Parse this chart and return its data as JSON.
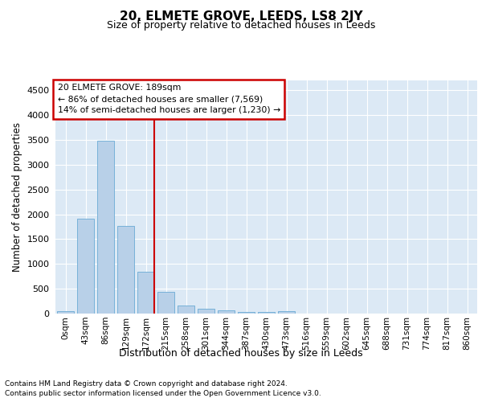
{
  "title": "20, ELMETE GROVE, LEEDS, LS8 2JY",
  "subtitle": "Size of property relative to detached houses in Leeds",
  "xlabel": "Distribution of detached houses by size in Leeds",
  "ylabel": "Number of detached properties",
  "bin_labels": [
    "0sqm",
    "43sqm",
    "86sqm",
    "129sqm",
    "172sqm",
    "215sqm",
    "258sqm",
    "301sqm",
    "344sqm",
    "387sqm",
    "430sqm",
    "473sqm",
    "516sqm",
    "559sqm",
    "602sqm",
    "645sqm",
    "688sqm",
    "731sqm",
    "774sqm",
    "817sqm",
    "860sqm"
  ],
  "bar_heights": [
    50,
    1920,
    3480,
    1760,
    840,
    440,
    170,
    100,
    60,
    40,
    30,
    50,
    5,
    3,
    2,
    2,
    1,
    1,
    1,
    1,
    0
  ],
  "bar_color": "#b8d0e8",
  "bar_edge_color": "#6aaad4",
  "background_color": "#dce9f5",
  "grid_color": "#ffffff",
  "vline_x": 4.42,
  "vline_color": "#cc0000",
  "annotation_text": "20 ELMETE GROVE: 189sqm\n← 86% of detached houses are smaller (7,569)\n14% of semi-detached houses are larger (1,230) →",
  "annotation_box_color": "#ffffff",
  "annotation_box_edge_color": "#cc0000",
  "ylim": [
    0,
    4700
  ],
  "yticks": [
    0,
    500,
    1000,
    1500,
    2000,
    2500,
    3000,
    3500,
    4000,
    4500
  ],
  "footer_line1": "Contains HM Land Registry data © Crown copyright and database right 2024.",
  "footer_line2": "Contains public sector information licensed under the Open Government Licence v3.0."
}
